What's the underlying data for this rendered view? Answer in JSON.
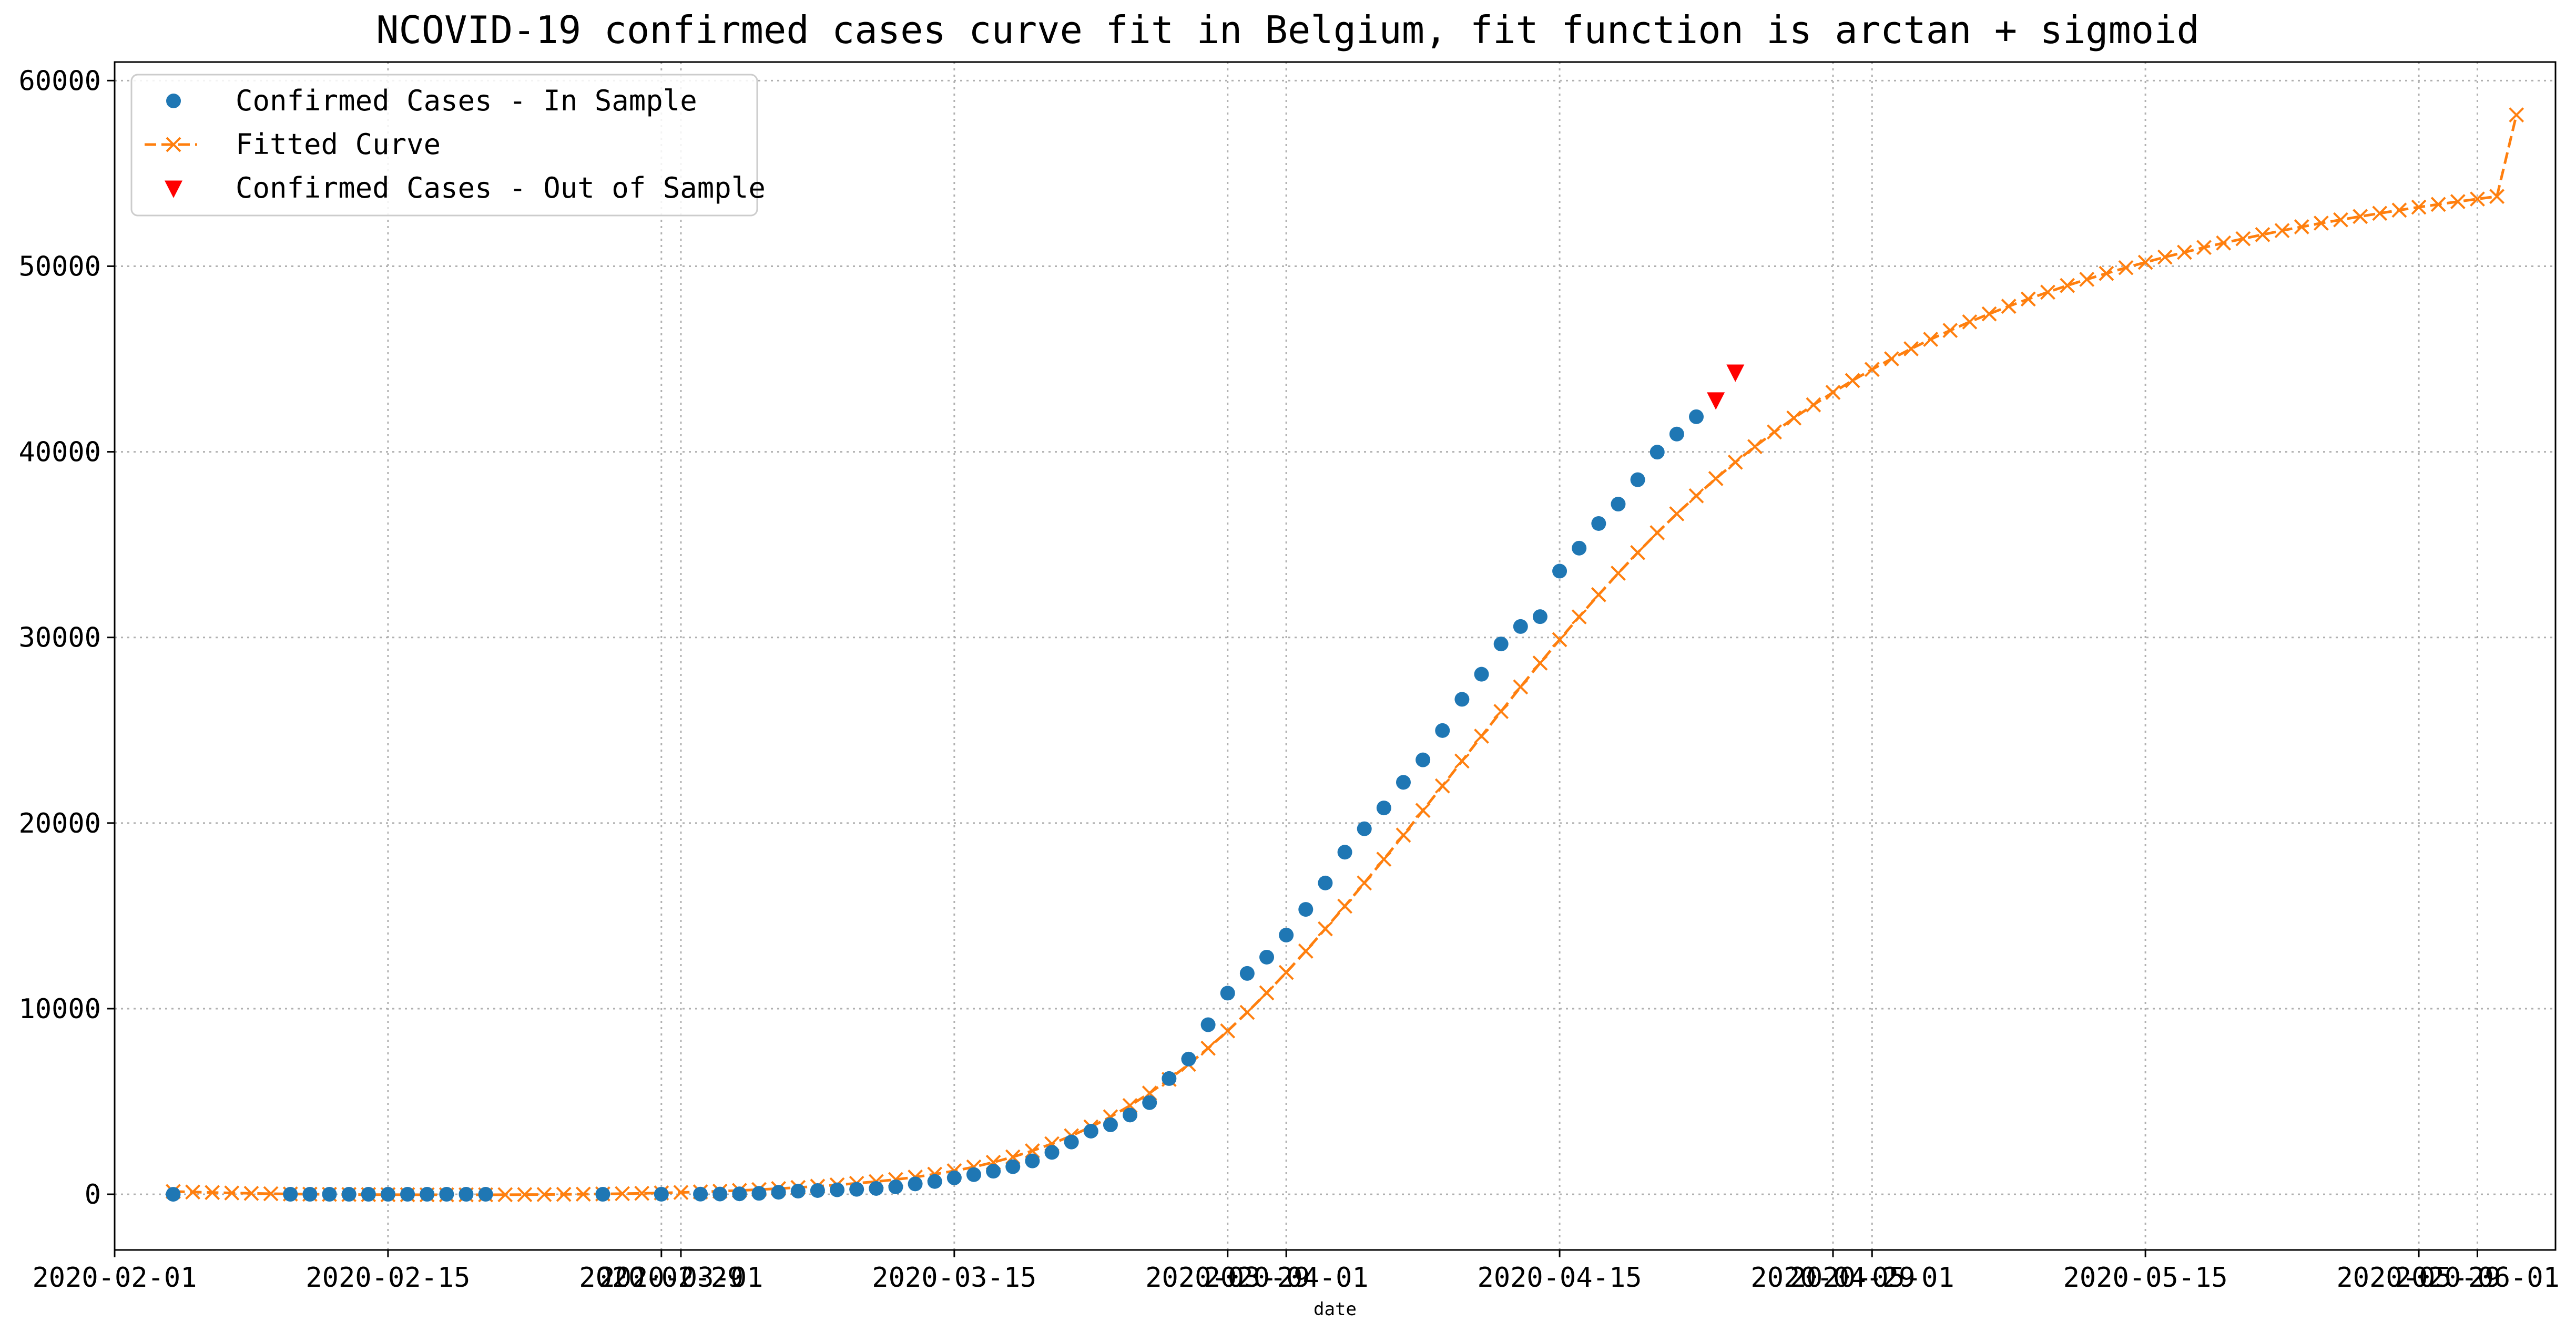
{
  "chart_data": {
    "type": "line",
    "title": "NCOVID-19 confirmed cases curve fit in Belgium, fit function is arctan + sigmoid",
    "xlabel": "date",
    "ylabel": "",
    "grid": true,
    "legend_position": "top-left",
    "xlim": [
      "2020-02-01",
      "2020-06-05"
    ],
    "ylim": [
      -3000,
      61000
    ],
    "x_ticks": [
      {
        "date": "2020-02-01",
        "label": "2020-02-01"
      },
      {
        "date": "2020-02-15",
        "label": "2020-02-15"
      },
      {
        "date": "2020-02-29",
        "label": "2020-02-29"
      },
      {
        "date": "2020-03-01",
        "label": "2020-03-01"
      },
      {
        "date": "2020-03-15",
        "label": "2020-03-15"
      },
      {
        "date": "2020-03-29",
        "label": "2020-03-29"
      },
      {
        "date": "2020-04-01",
        "label": "2020-04-01"
      },
      {
        "date": "2020-04-15",
        "label": "2020-04-15"
      },
      {
        "date": "2020-04-29",
        "label": "2020-04-29"
      },
      {
        "date": "2020-05-01",
        "label": "2020-05-01"
      },
      {
        "date": "2020-05-15",
        "label": "2020-05-15"
      },
      {
        "date": "2020-05-29",
        "label": "2020-05-29"
      },
      {
        "date": "2020-06-01",
        "label": "2020-06-01"
      }
    ],
    "y_ticks": [
      {
        "value": 0,
        "label": "0"
      },
      {
        "value": 10000,
        "label": "10000"
      },
      {
        "value": 20000,
        "label": "20000"
      },
      {
        "value": 30000,
        "label": "30000"
      },
      {
        "value": 40000,
        "label": "40000"
      },
      {
        "value": 50000,
        "label": "50000"
      },
      {
        "value": 60000,
        "label": "60000"
      }
    ],
    "series": [
      {
        "name": "Confirmed Cases - In Sample",
        "style": "circle",
        "color": "#1f77b4",
        "points": [
          [
            "2020-02-04",
            0
          ],
          [
            "2020-02-10",
            1
          ],
          [
            "2020-02-11",
            1
          ],
          [
            "2020-02-12",
            1
          ],
          [
            "2020-02-13",
            1
          ],
          [
            "2020-02-14",
            1
          ],
          [
            "2020-02-15",
            1
          ],
          [
            "2020-02-16",
            1
          ],
          [
            "2020-02-17",
            1
          ],
          [
            "2020-02-18",
            1
          ],
          [
            "2020-02-19",
            1
          ],
          [
            "2020-02-20",
            1
          ],
          [
            "2020-02-26",
            1
          ],
          [
            "2020-02-29",
            2
          ],
          [
            "2020-03-02",
            8
          ],
          [
            "2020-03-03",
            13
          ],
          [
            "2020-03-04",
            23
          ],
          [
            "2020-03-05",
            50
          ],
          [
            "2020-03-06",
            109
          ],
          [
            "2020-03-07",
            169
          ],
          [
            "2020-03-08",
            200
          ],
          [
            "2020-03-09",
            239
          ],
          [
            "2020-03-10",
            267
          ],
          [
            "2020-03-11",
            314
          ],
          [
            "2020-03-12",
            399
          ],
          [
            "2020-03-13",
            559
          ],
          [
            "2020-03-14",
            689
          ],
          [
            "2020-03-15",
            886
          ],
          [
            "2020-03-16",
            1058
          ],
          [
            "2020-03-17",
            1243
          ],
          [
            "2020-03-18",
            1486
          ],
          [
            "2020-03-19",
            1795
          ],
          [
            "2020-03-20",
            2257
          ],
          [
            "2020-03-21",
            2815
          ],
          [
            "2020-03-22",
            3401
          ],
          [
            "2020-03-23",
            3743
          ],
          [
            "2020-03-24",
            4269
          ],
          [
            "2020-03-25",
            4937
          ],
          [
            "2020-03-26",
            6235
          ],
          [
            "2020-03-27",
            7284
          ],
          [
            "2020-03-28",
            9134
          ],
          [
            "2020-03-29",
            10836
          ],
          [
            "2020-03-30",
            11899
          ],
          [
            "2020-03-31",
            12775
          ],
          [
            "2020-04-01",
            13964
          ],
          [
            "2020-04-02",
            15348
          ],
          [
            "2020-04-03",
            16770
          ],
          [
            "2020-04-04",
            18431
          ],
          [
            "2020-04-05",
            19691
          ],
          [
            "2020-04-06",
            20814
          ],
          [
            "2020-04-07",
            22194
          ],
          [
            "2020-04-08",
            23403
          ],
          [
            "2020-04-09",
            24983
          ],
          [
            "2020-04-10",
            26667
          ],
          [
            "2020-04-11",
            28018
          ],
          [
            "2020-04-12",
            29647
          ],
          [
            "2020-04-13",
            30589
          ],
          [
            "2020-04-14",
            31119
          ],
          [
            "2020-04-15",
            33573
          ],
          [
            "2020-04-16",
            34809
          ],
          [
            "2020-04-17",
            36138
          ],
          [
            "2020-04-18",
            37183
          ],
          [
            "2020-04-19",
            38496
          ],
          [
            "2020-04-20",
            39983
          ],
          [
            "2020-04-21",
            40956
          ],
          [
            "2020-04-22",
            41889
          ]
        ]
      },
      {
        "name": "Fitted Curve",
        "style": "dashed-x",
        "color": "#ff7f0e",
        "points": [
          [
            "2020-02-04",
            150
          ],
          [
            "2020-02-05",
            120
          ],
          [
            "2020-02-06",
            95
          ],
          [
            "2020-02-07",
            70
          ],
          [
            "2020-02-08",
            50
          ],
          [
            "2020-02-09",
            30
          ],
          [
            "2020-02-10",
            15
          ],
          [
            "2020-02-11",
            5
          ],
          [
            "2020-02-12",
            -5
          ],
          [
            "2020-02-13",
            -12
          ],
          [
            "2020-02-14",
            -18
          ],
          [
            "2020-02-15",
            -22
          ],
          [
            "2020-02-16",
            -25
          ],
          [
            "2020-02-17",
            -27
          ],
          [
            "2020-02-18",
            -28
          ],
          [
            "2020-02-19",
            -28
          ],
          [
            "2020-02-20",
            -26
          ],
          [
            "2020-02-21",
            -23
          ],
          [
            "2020-02-22",
            -18
          ],
          [
            "2020-02-23",
            -12
          ],
          [
            "2020-02-24",
            -4
          ],
          [
            "2020-02-25",
            6
          ],
          [
            "2020-02-26",
            18
          ],
          [
            "2020-02-27",
            33
          ],
          [
            "2020-02-28",
            51
          ],
          [
            "2020-02-29",
            72
          ],
          [
            "2020-03-01",
            98
          ],
          [
            "2020-03-02",
            128
          ],
          [
            "2020-03-03",
            164
          ],
          [
            "2020-03-04",
            205
          ],
          [
            "2020-03-05",
            252
          ],
          [
            "2020-03-06",
            305
          ],
          [
            "2020-03-07",
            365
          ],
          [
            "2020-03-08",
            432
          ],
          [
            "2020-03-09",
            507
          ],
          [
            "2020-03-10",
            590
          ],
          [
            "2020-03-11",
            685
          ],
          [
            "2020-03-12",
            795
          ],
          [
            "2020-03-13",
            925
          ],
          [
            "2020-03-14",
            1080
          ],
          [
            "2020-03-15",
            1260
          ],
          [
            "2020-03-16",
            1470
          ],
          [
            "2020-03-17",
            1720
          ],
          [
            "2020-03-18",
            2010
          ],
          [
            "2020-03-19",
            2340
          ],
          [
            "2020-03-20",
            2720
          ],
          [
            "2020-03-21",
            3150
          ],
          [
            "2020-03-22",
            3630
          ],
          [
            "2020-03-23",
            4170
          ],
          [
            "2020-03-24",
            4780
          ],
          [
            "2020-03-25",
            5450
          ],
          [
            "2020-03-26",
            6190
          ],
          [
            "2020-03-27",
            7000
          ],
          [
            "2020-03-28",
            7870
          ],
          [
            "2020-03-29",
            8800
          ],
          [
            "2020-03-30",
            9800
          ],
          [
            "2020-03-31",
            10850
          ],
          [
            "2020-04-01",
            11950
          ],
          [
            "2020-04-02",
            13100
          ],
          [
            "2020-04-03",
            14300
          ],
          [
            "2020-04-04",
            15520
          ],
          [
            "2020-04-05",
            16770
          ],
          [
            "2020-04-06",
            18050
          ],
          [
            "2020-04-07",
            19350
          ],
          [
            "2020-04-08",
            20680
          ],
          [
            "2020-04-09",
            22000
          ],
          [
            "2020-04-10",
            23340
          ],
          [
            "2020-04-11",
            24680
          ],
          [
            "2020-04-12",
            26010
          ],
          [
            "2020-04-13",
            27330
          ],
          [
            "2020-04-14",
            28620
          ],
          [
            "2020-04-15",
            29880
          ],
          [
            "2020-04-16",
            31110
          ],
          [
            "2020-04-17",
            32300
          ],
          [
            "2020-04-18",
            33460
          ],
          [
            "2020-04-19",
            34570
          ],
          [
            "2020-04-20",
            35640
          ],
          [
            "2020-04-21",
            36660
          ],
          [
            "2020-04-22",
            37630
          ],
          [
            "2020-04-23",
            38560
          ],
          [
            "2020-04-24",
            39440
          ],
          [
            "2020-04-25",
            40280
          ],
          [
            "2020-04-26",
            41070
          ],
          [
            "2020-04-27",
            41820
          ],
          [
            "2020-04-28",
            42530
          ],
          [
            "2020-04-29",
            43200
          ],
          [
            "2020-04-30",
            43840
          ],
          [
            "2020-05-01",
            44440
          ],
          [
            "2020-05-02",
            45010
          ],
          [
            "2020-05-03",
            45550
          ],
          [
            "2020-05-04",
            46060
          ],
          [
            "2020-05-05",
            46540
          ],
          [
            "2020-05-06",
            47000
          ],
          [
            "2020-05-07",
            47430
          ],
          [
            "2020-05-08",
            47840
          ],
          [
            "2020-05-09",
            48230
          ],
          [
            "2020-05-10",
            48600
          ],
          [
            "2020-05-11",
            48960
          ],
          [
            "2020-05-12",
            49290
          ],
          [
            "2020-05-13",
            49610
          ],
          [
            "2020-05-14",
            49920
          ],
          [
            "2020-05-15",
            50210
          ],
          [
            "2020-05-16",
            50490
          ],
          [
            "2020-05-17",
            50750
          ],
          [
            "2020-05-18",
            51010
          ],
          [
            "2020-05-19",
            51250
          ],
          [
            "2020-05-20",
            51480
          ],
          [
            "2020-05-21",
            51700
          ],
          [
            "2020-05-22",
            51920
          ],
          [
            "2020-05-23",
            52120
          ],
          [
            "2020-05-24",
            52320
          ],
          [
            "2020-05-25",
            52500
          ],
          [
            "2020-05-26",
            52680
          ],
          [
            "2020-05-27",
            52850
          ],
          [
            "2020-05-28",
            53020
          ],
          [
            "2020-05-29",
            53180
          ],
          [
            "2020-05-30",
            53330
          ],
          [
            "2020-05-31",
            53480
          ],
          [
            "2020-06-01",
            53620
          ],
          [
            "2020-06-02",
            53760
          ],
          [
            "2020-06-03",
            58150
          ]
        ]
      },
      {
        "name": "Confirmed Cases - Out of Sample",
        "style": "triangle-down",
        "color": "#ff0000",
        "points": [
          [
            "2020-04-23",
            42797
          ],
          [
            "2020-04-24",
            44293
          ]
        ]
      }
    ]
  }
}
